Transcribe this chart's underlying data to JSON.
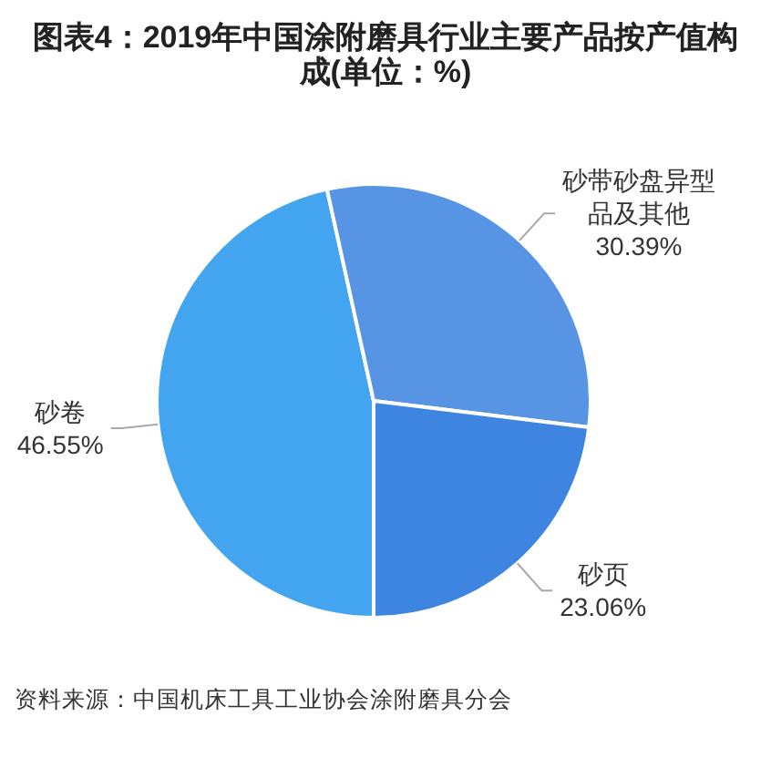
{
  "chart_data": {
    "type": "pie",
    "title": "图表4：2019年中国涂附磨具行业主要产品按产值构成(单位：%)",
    "categories": [
      "砂卷",
      "砂带砂盘异型品及其他",
      "砂页"
    ],
    "values": [
      46.55,
      30.39,
      23.06
    ],
    "colors": [
      "#43a5f0",
      "#5794e4",
      "#3d85e0"
    ],
    "value_labels": [
      "46.55%",
      "30.39%",
      "23.06%"
    ],
    "annotations": [
      "资料来源：中国机床工具工业协会涂附磨具分会"
    ]
  }
}
